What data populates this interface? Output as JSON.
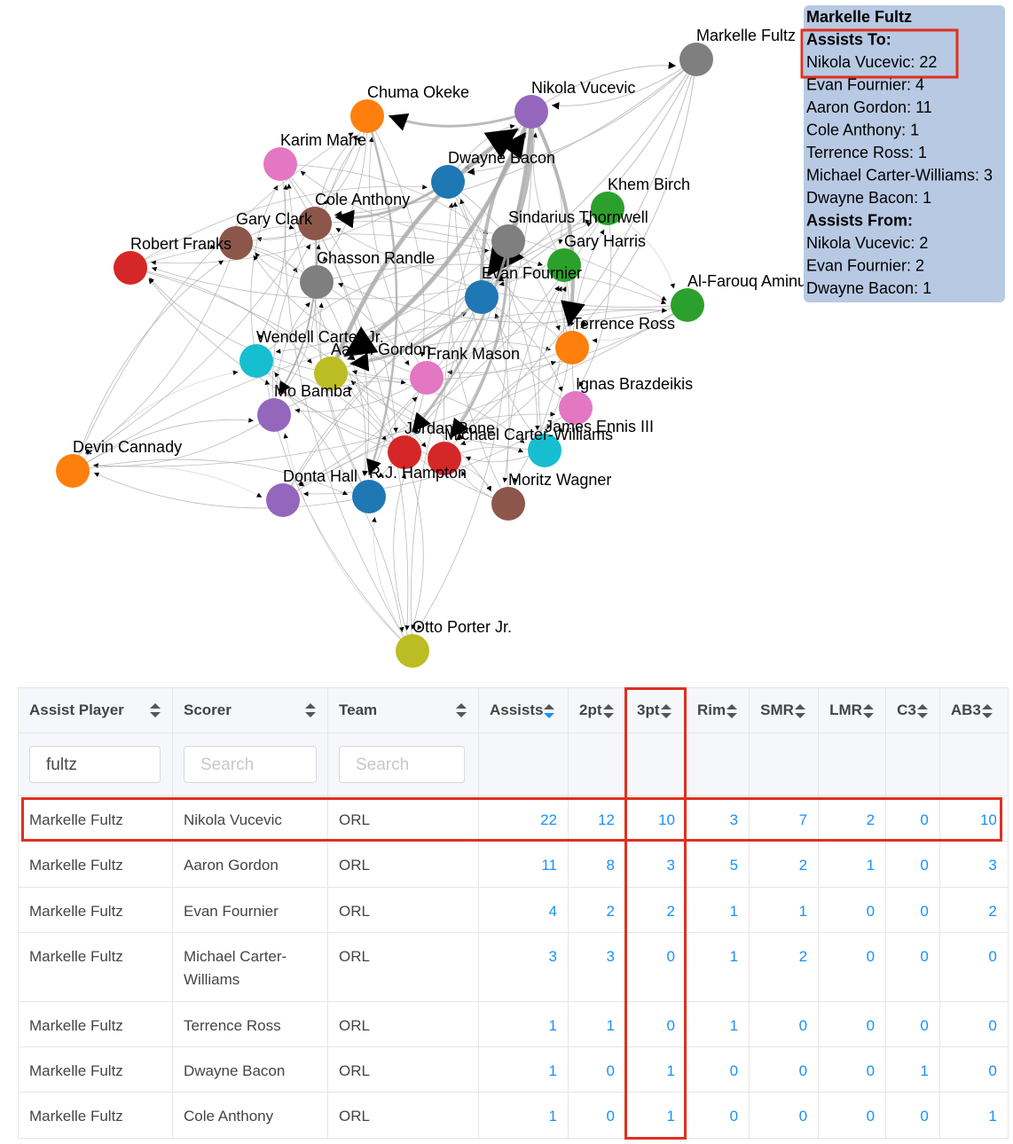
{
  "graph": {
    "nodes": [
      {
        "label": "Markelle Fultz",
        "color": "#7f7f7f"
      },
      {
        "label": "Chuma Okeke",
        "color": "#ff7f0e"
      },
      {
        "label": "Nikola Vucevic",
        "color": "#9467bd"
      },
      {
        "label": "Karim Mane",
        "color": "#e377c2"
      },
      {
        "label": "Dwayne Bacon",
        "color": "#1f77b4"
      },
      {
        "label": "Cole Anthony",
        "color": "#8c564b"
      },
      {
        "label": "Khem Birch",
        "color": "#2ca02c"
      },
      {
        "label": "Gary Clark",
        "color": "#8c564b"
      },
      {
        "label": "Robert Franks",
        "color": "#d62728"
      },
      {
        "label": "Sindarius Thornwell",
        "color": "#7f7f7f"
      },
      {
        "label": "Gary Harris",
        "color": "#2ca02c"
      },
      {
        "label": "Chasson Randle",
        "color": "#7f7f7f"
      },
      {
        "label": "Evan Fournier",
        "color": "#1f77b4"
      },
      {
        "label": "Al-Farouq Aminu",
        "color": "#2ca02c"
      },
      {
        "label": "Terrence Ross",
        "color": "#ff7f0e"
      },
      {
        "label": "Wendell Carter Jr.",
        "color": "#17becf"
      },
      {
        "label": "Aaron Gordon",
        "color": "#bcbd22"
      },
      {
        "label": "Frank Mason",
        "color": "#e377c2"
      },
      {
        "label": "Ignas Brazdeikis",
        "color": "#e377c2"
      },
      {
        "label": "Mo Bamba",
        "color": "#9467bd"
      },
      {
        "label": "James Ennis III",
        "color": "#17becf"
      },
      {
        "label": "Jordan Bone",
        "color": "#d62728"
      },
      {
        "label": "Michael Carter-Williams",
        "color": "#d62728"
      },
      {
        "label": "Devin Cannady",
        "color": "#ff7f0e"
      },
      {
        "label": "Donta Hall",
        "color": "#9467bd"
      },
      {
        "label": "R.J. Hampton",
        "color": "#1f77b4"
      },
      {
        "label": "Moritz Wagner",
        "color": "#8c564b"
      },
      {
        "label": "Otto Porter Jr.",
        "color": "#bcbd22"
      }
    ]
  },
  "tooltip": {
    "title": "Markelle Fultz",
    "to_heading": "Assists To:",
    "to": [
      "Nikola Vucevic: 22",
      "Evan Fournier: 4",
      "Aaron Gordon: 11",
      "Cole Anthony: 1",
      "Terrence Ross: 1",
      "Michael Carter-Williams: 3",
      "Dwayne Bacon: 1"
    ],
    "from_heading": "Assists From:",
    "from": [
      "Nikola Vucevic: 2",
      "Evan Fournier: 2",
      "Dwayne Bacon: 1"
    ]
  },
  "table": {
    "columns": [
      "Assist Player",
      "Scorer",
      "Team",
      "Assists",
      "2pt",
      "3pt",
      "Rim",
      "SMR",
      "LMR",
      "C3",
      "AB3"
    ],
    "filters": [
      {
        "value": "fultz"
      },
      {
        "placeholder": "Search"
      },
      {
        "placeholder": "Search"
      }
    ],
    "rows": [
      [
        "Markelle Fultz",
        "Nikola Vucevic",
        "ORL",
        22,
        12,
        10,
        3,
        7,
        2,
        0,
        10
      ],
      [
        "Markelle Fultz",
        "Aaron Gordon",
        "ORL",
        11,
        8,
        3,
        5,
        2,
        1,
        0,
        3
      ],
      [
        "Markelle Fultz",
        "Evan Fournier",
        "ORL",
        4,
        2,
        2,
        1,
        1,
        0,
        0,
        2
      ],
      [
        "Markelle Fultz",
        "Michael Carter-Williams",
        "ORL",
        3,
        3,
        0,
        1,
        2,
        0,
        0,
        0
      ],
      [
        "Markelle Fultz",
        "Terrence Ross",
        "ORL",
        1,
        1,
        0,
        1,
        0,
        0,
        0,
        0
      ],
      [
        "Markelle Fultz",
        "Dwayne Bacon",
        "ORL",
        1,
        0,
        1,
        0,
        0,
        0,
        1,
        0
      ],
      [
        "Markelle Fultz",
        "Cole Anthony",
        "ORL",
        1,
        0,
        1,
        0,
        0,
        0,
        0,
        1
      ]
    ]
  }
}
